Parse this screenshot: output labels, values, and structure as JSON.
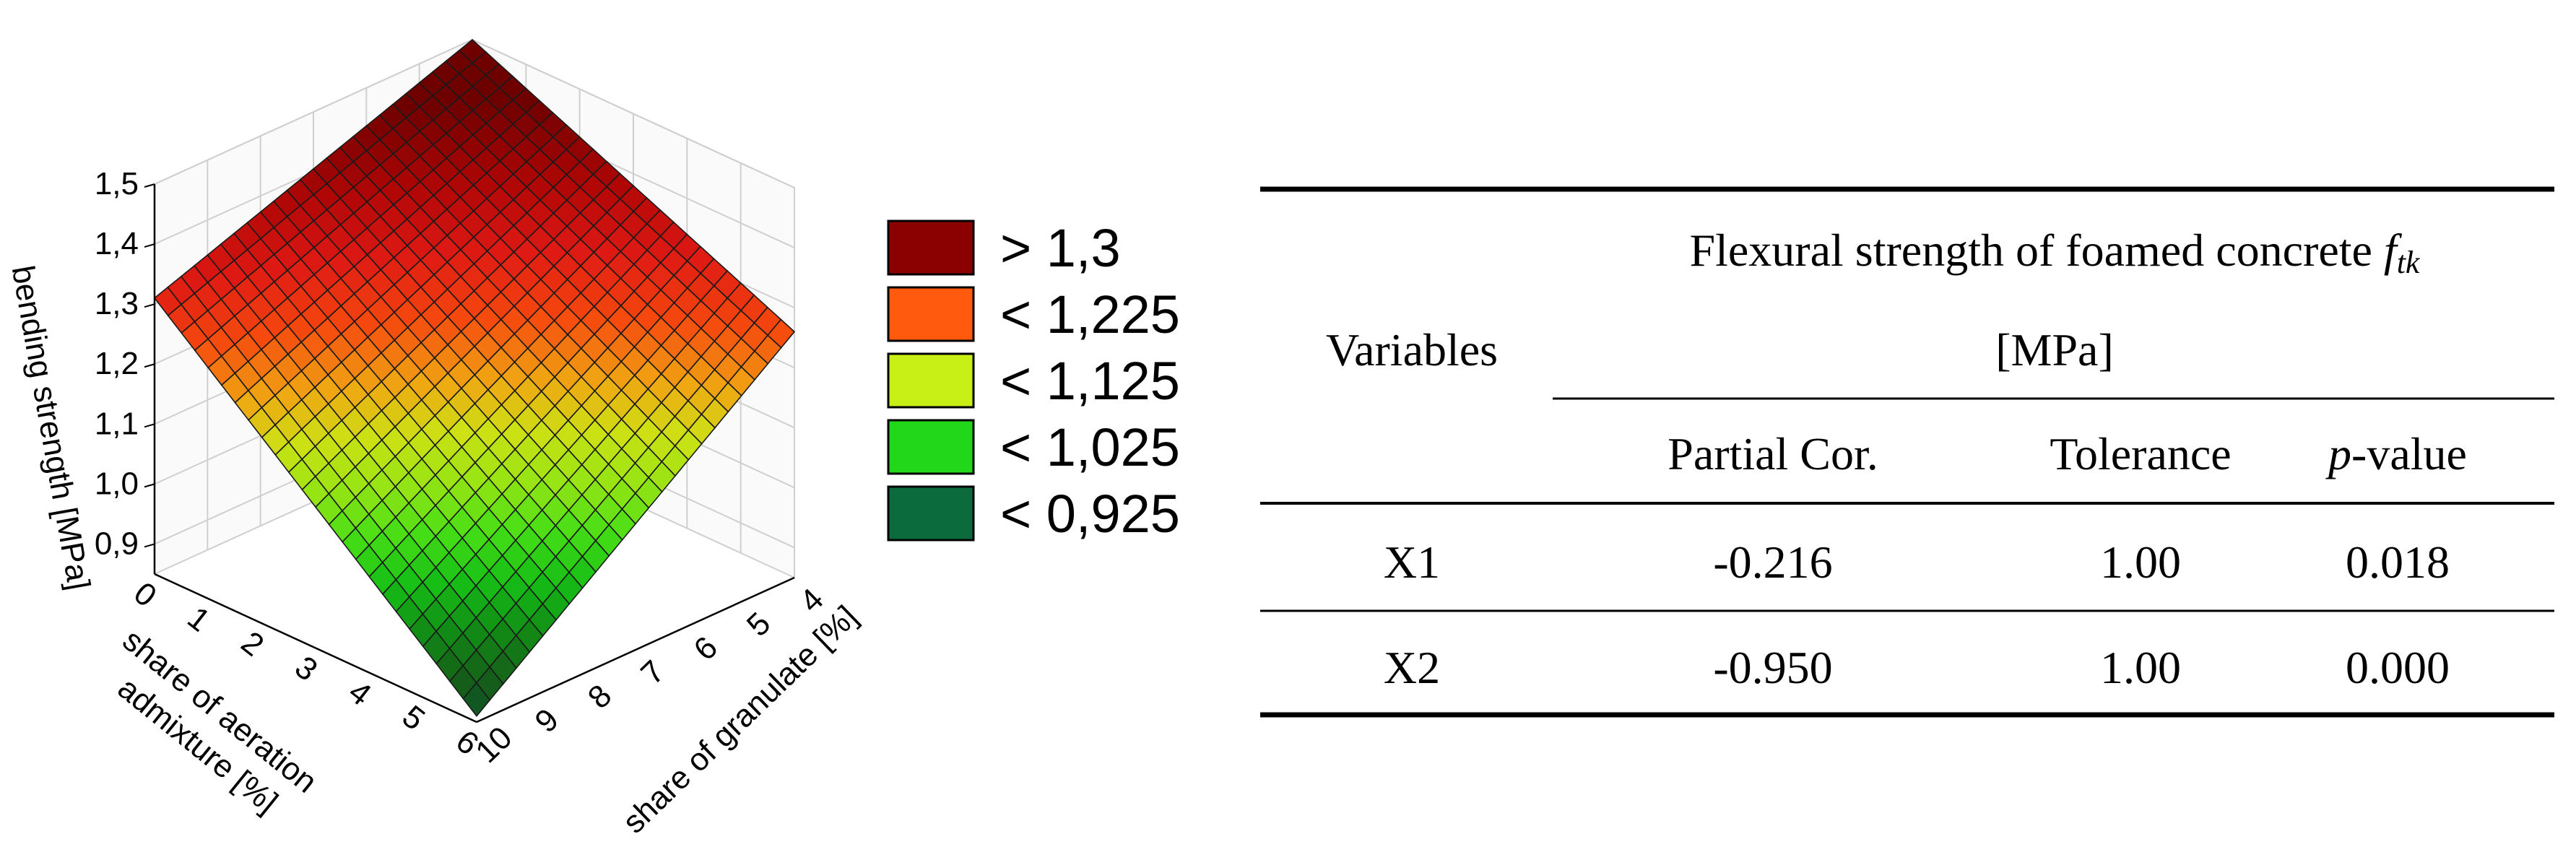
{
  "chart_data": [
    {
      "type": "surface",
      "zlabel": "bending strength [MPa]",
      "xlabel": "share of aeration admixture [%]",
      "ylabel": "share of granulate [%]",
      "x_ticks": [
        "0",
        "1",
        "2",
        "3",
        "4",
        "5",
        "6"
      ],
      "y_ticks": [
        "4",
        "5",
        "6",
        "7",
        "8",
        "9",
        "10"
      ],
      "z_ticks": [
        "0,9",
        "1,0",
        "1,1",
        "1,2",
        "1,3",
        "1,4",
        "1,5"
      ],
      "xlim": [
        0,
        6
      ],
      "ylim": [
        4,
        10
      ],
      "zlim": [
        0.85,
        1.5
      ],
      "surface": {
        "x": [
          0,
          6
        ],
        "y": [
          4,
          10
        ],
        "z": [
          [
            1.5,
            1.26
          ],
          [
            1.31,
            0.86
          ]
        ]
      },
      "legend": [
        {
          "label": "> 1,3",
          "color": "#8b0000"
        },
        {
          "label": "< 1,225",
          "color": "#ff5a0e"
        },
        {
          "label": "< 1,125",
          "color": "#c8f016"
        },
        {
          "label": "< 1,025",
          "color": "#22d61a"
        },
        {
          "label": "< 0,925",
          "color": "#0b6b3c"
        }
      ]
    },
    {
      "type": "table",
      "header": {
        "variables": "Variables",
        "group_title": "Flexural strength of foamed concrete ",
        "group_title_symbol": "f",
        "group_title_subscript": "tk",
        "group_unit": "[MPa]",
        "columns": [
          "Partial Cor.",
          "Tolerance",
          "-value"
        ],
        "p_prefix": "p"
      },
      "rows": [
        {
          "variable": "X1",
          "partial_cor": "-0.216",
          "tolerance": "1.00",
          "p_value": "0.018"
        },
        {
          "variable": "X2",
          "partial_cor": "-0.950",
          "tolerance": "1.00",
          "p_value": "0.000"
        }
      ]
    }
  ]
}
